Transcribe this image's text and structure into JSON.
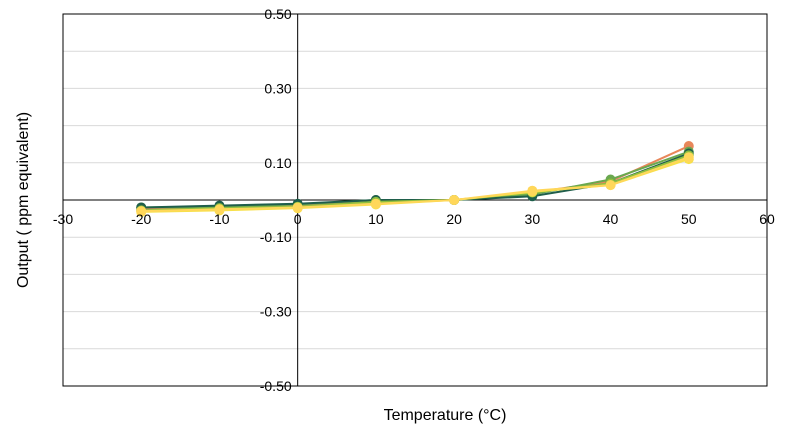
{
  "chart_data": {
    "type": "line",
    "title": "",
    "xlabel": "Temperature (°C)",
    "ylabel": "Output ( ppm equivalent)",
    "xlim": [
      -30,
      60
    ],
    "ylim": [
      -0.5,
      0.5
    ],
    "x_ticks": [
      "-30",
      "-20",
      "-10",
      "0",
      "10",
      "20",
      "30",
      "40",
      "50",
      "60"
    ],
    "y_ticks": [
      "0.50",
      "0.30",
      "0.10",
      "-0.10",
      "-0.30",
      "-0.50"
    ],
    "y_tick_values": [
      0.5,
      0.3,
      0.1,
      -0.1,
      -0.3,
      -0.5
    ],
    "x_tick_values": [
      -30,
      -20,
      -10,
      0,
      10,
      20,
      30,
      40,
      50,
      60
    ],
    "grid": "horizontal",
    "x": [
      -20,
      -10,
      0,
      10,
      20,
      30,
      40,
      50
    ],
    "series": [
      {
        "color": "#e8875a",
        "values": [
          -0.025,
          -0.02,
          -0.015,
          -0.005,
          0.0,
          0.02,
          0.05,
          0.145
        ]
      },
      {
        "color": "#6aa84f",
        "values": [
          -0.02,
          -0.018,
          -0.012,
          0.0,
          0.0,
          0.015,
          0.055,
          0.13
        ]
      },
      {
        "color": "#1f5e4b",
        "values": [
          -0.02,
          -0.015,
          -0.01,
          0.0,
          0.0,
          0.01,
          0.045,
          0.125
        ]
      },
      {
        "color": "#8fbf3f",
        "values": [
          -0.028,
          -0.022,
          -0.018,
          -0.005,
          0.0,
          0.02,
          0.045,
          0.12
        ]
      },
      {
        "color": "#f7e04a",
        "values": [
          -0.032,
          -0.028,
          -0.022,
          -0.012,
          0.0,
          0.022,
          0.04,
          0.11
        ]
      },
      {
        "color": "#ffd75a",
        "values": [
          -0.03,
          -0.025,
          -0.02,
          -0.01,
          0.0,
          0.025,
          0.04,
          0.115
        ]
      }
    ]
  }
}
